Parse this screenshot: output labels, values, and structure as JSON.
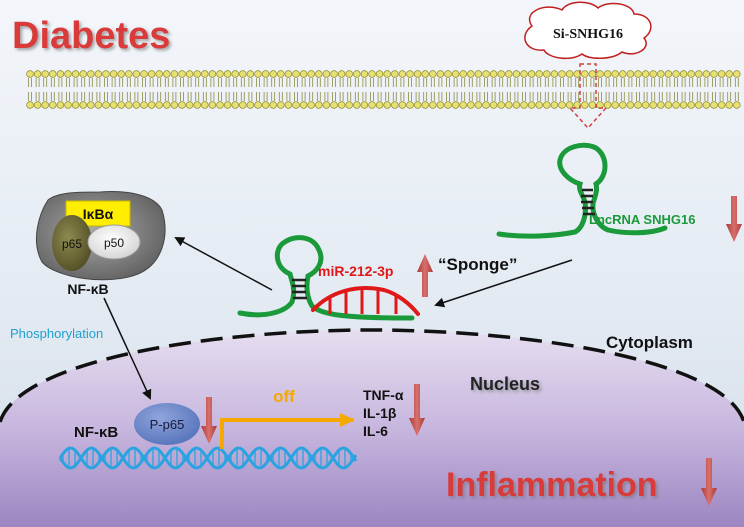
{
  "title": "Diabetes",
  "si_label": "Si-SNHG16",
  "lncrna_label": "LncRNA SNHG16",
  "mirna_label": "miR-212-3p",
  "sponge_label": "“Sponge”",
  "ikba_label": "IκBα",
  "p65_label": "p65",
  "p50_label": "p50",
  "nfkb_label": "NF-κB",
  "phosphorylation_label": "Phosphorylation",
  "cytoplasm_label": "Cytoplasm",
  "nucleus_label": "Nucleus",
  "pp65_label": "P-p65",
  "nfkb_nucleus_label": "NF-κB",
  "off_label": "off",
  "cytokines": [
    "TNF-α",
    "IL-1β",
    "IL-6"
  ],
  "inflammation_label": "Inflammation",
  "colors": {
    "title_red": "#d93a3a",
    "lnc_green": "#1a9a3a",
    "mir_red": "#e01818",
    "arrow_red": "#c0504d",
    "phos_cyan": "#20a0d0",
    "off_orange": "#f5a800",
    "dna_blue": "#2aa3e0",
    "ikba_yellow": "#ffee00",
    "nucleus_fill": "#c9b8e0"
  }
}
